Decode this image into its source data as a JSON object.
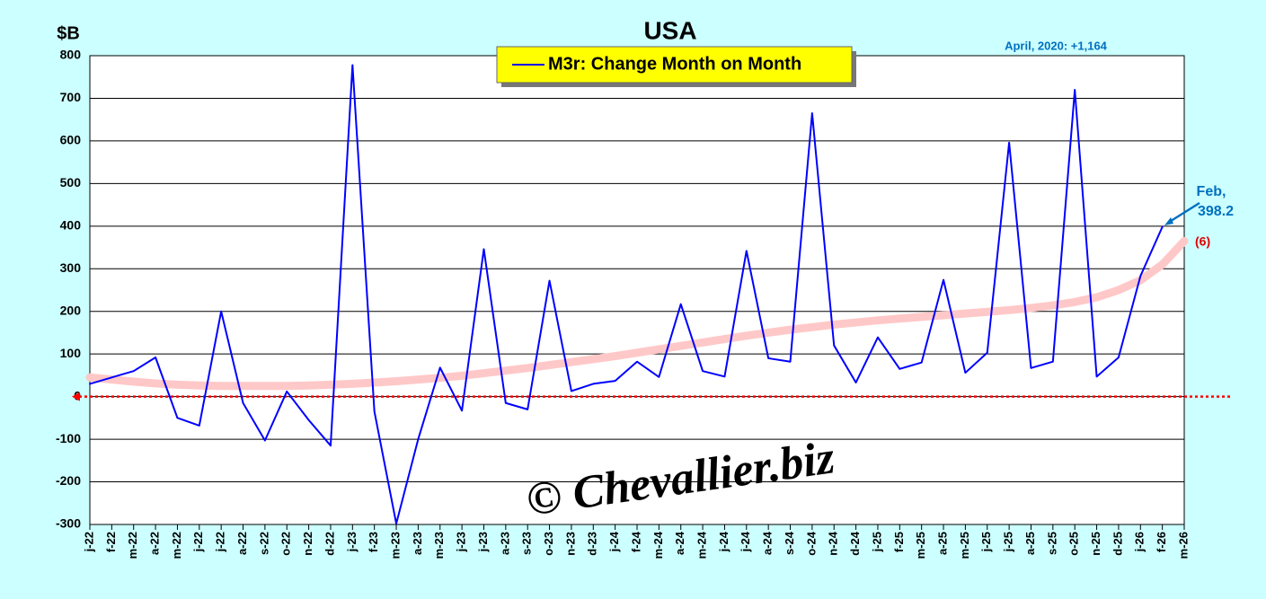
{
  "chart_data": {
    "type": "line",
    "title": "USA",
    "ylabel": "$B",
    "categories": [
      "j-22",
      "f-22",
      "m-22",
      "a-22",
      "m-22",
      "j-22",
      "j-22",
      "a-22",
      "s-22",
      "o-22",
      "n-22",
      "d-22",
      "j-23",
      "f-23",
      "m-23",
      "a-23",
      "m-23",
      "j-23",
      "j-23",
      "a-23",
      "s-23",
      "o-23",
      "n-23",
      "d-23",
      "j-24",
      "f-24",
      "m-24",
      "a-24",
      "m-24",
      "j-24",
      "j-24",
      "a-24",
      "s-24",
      "o-24",
      "n-24",
      "d-24",
      "j-25",
      "f-25",
      "m-25",
      "a-25",
      "m-25",
      "j-25",
      "j-25",
      "a-25",
      "s-25",
      "o-25",
      "n-25",
      "d-25",
      "j-26",
      "f-26",
      "m-26"
    ],
    "series": [
      {
        "name": "M3r: Change Month on Month",
        "color": "#0000ff",
        "values": [
          30,
          45,
          60,
          92,
          -50,
          -68,
          200,
          -15,
          -103,
          12,
          -55,
          -115,
          778,
          -35,
          -298,
          -100,
          68,
          -33,
          346,
          -15,
          -30,
          272,
          13,
          30,
          37,
          82,
          46,
          217,
          60,
          47,
          342,
          90,
          82,
          665,
          120,
          33,
          139,
          65,
          80,
          274,
          56,
          103,
          596,
          67,
          82,
          720,
          47,
          92,
          283,
          398.2,
          null
        ]
      }
    ],
    "trend": {
      "label": "(6)",
      "color": "#ffc8c8",
      "values": [
        45,
        40,
        35,
        31,
        28,
        26,
        25,
        25,
        25,
        25,
        26,
        28,
        30,
        33,
        36,
        40,
        44,
        49,
        55,
        61,
        67,
        74,
        81,
        88,
        95,
        103,
        111,
        119,
        127,
        135,
        143,
        150,
        157,
        163,
        169,
        174,
        179,
        183,
        187,
        191,
        195,
        199,
        203,
        208,
        214,
        222,
        233,
        250,
        273,
        310,
        365
      ]
    },
    "annotations": [
      "April, 2020: +1,164",
      "Feb,"
    ],
    "watermark": "© Chevallier.biz",
    "ylim": [
      -300,
      800
    ],
    "yticks": [
      -300,
      -200,
      -100,
      0,
      100,
      200,
      300,
      400,
      500,
      600,
      700,
      800
    ],
    "grid": true
  }
}
